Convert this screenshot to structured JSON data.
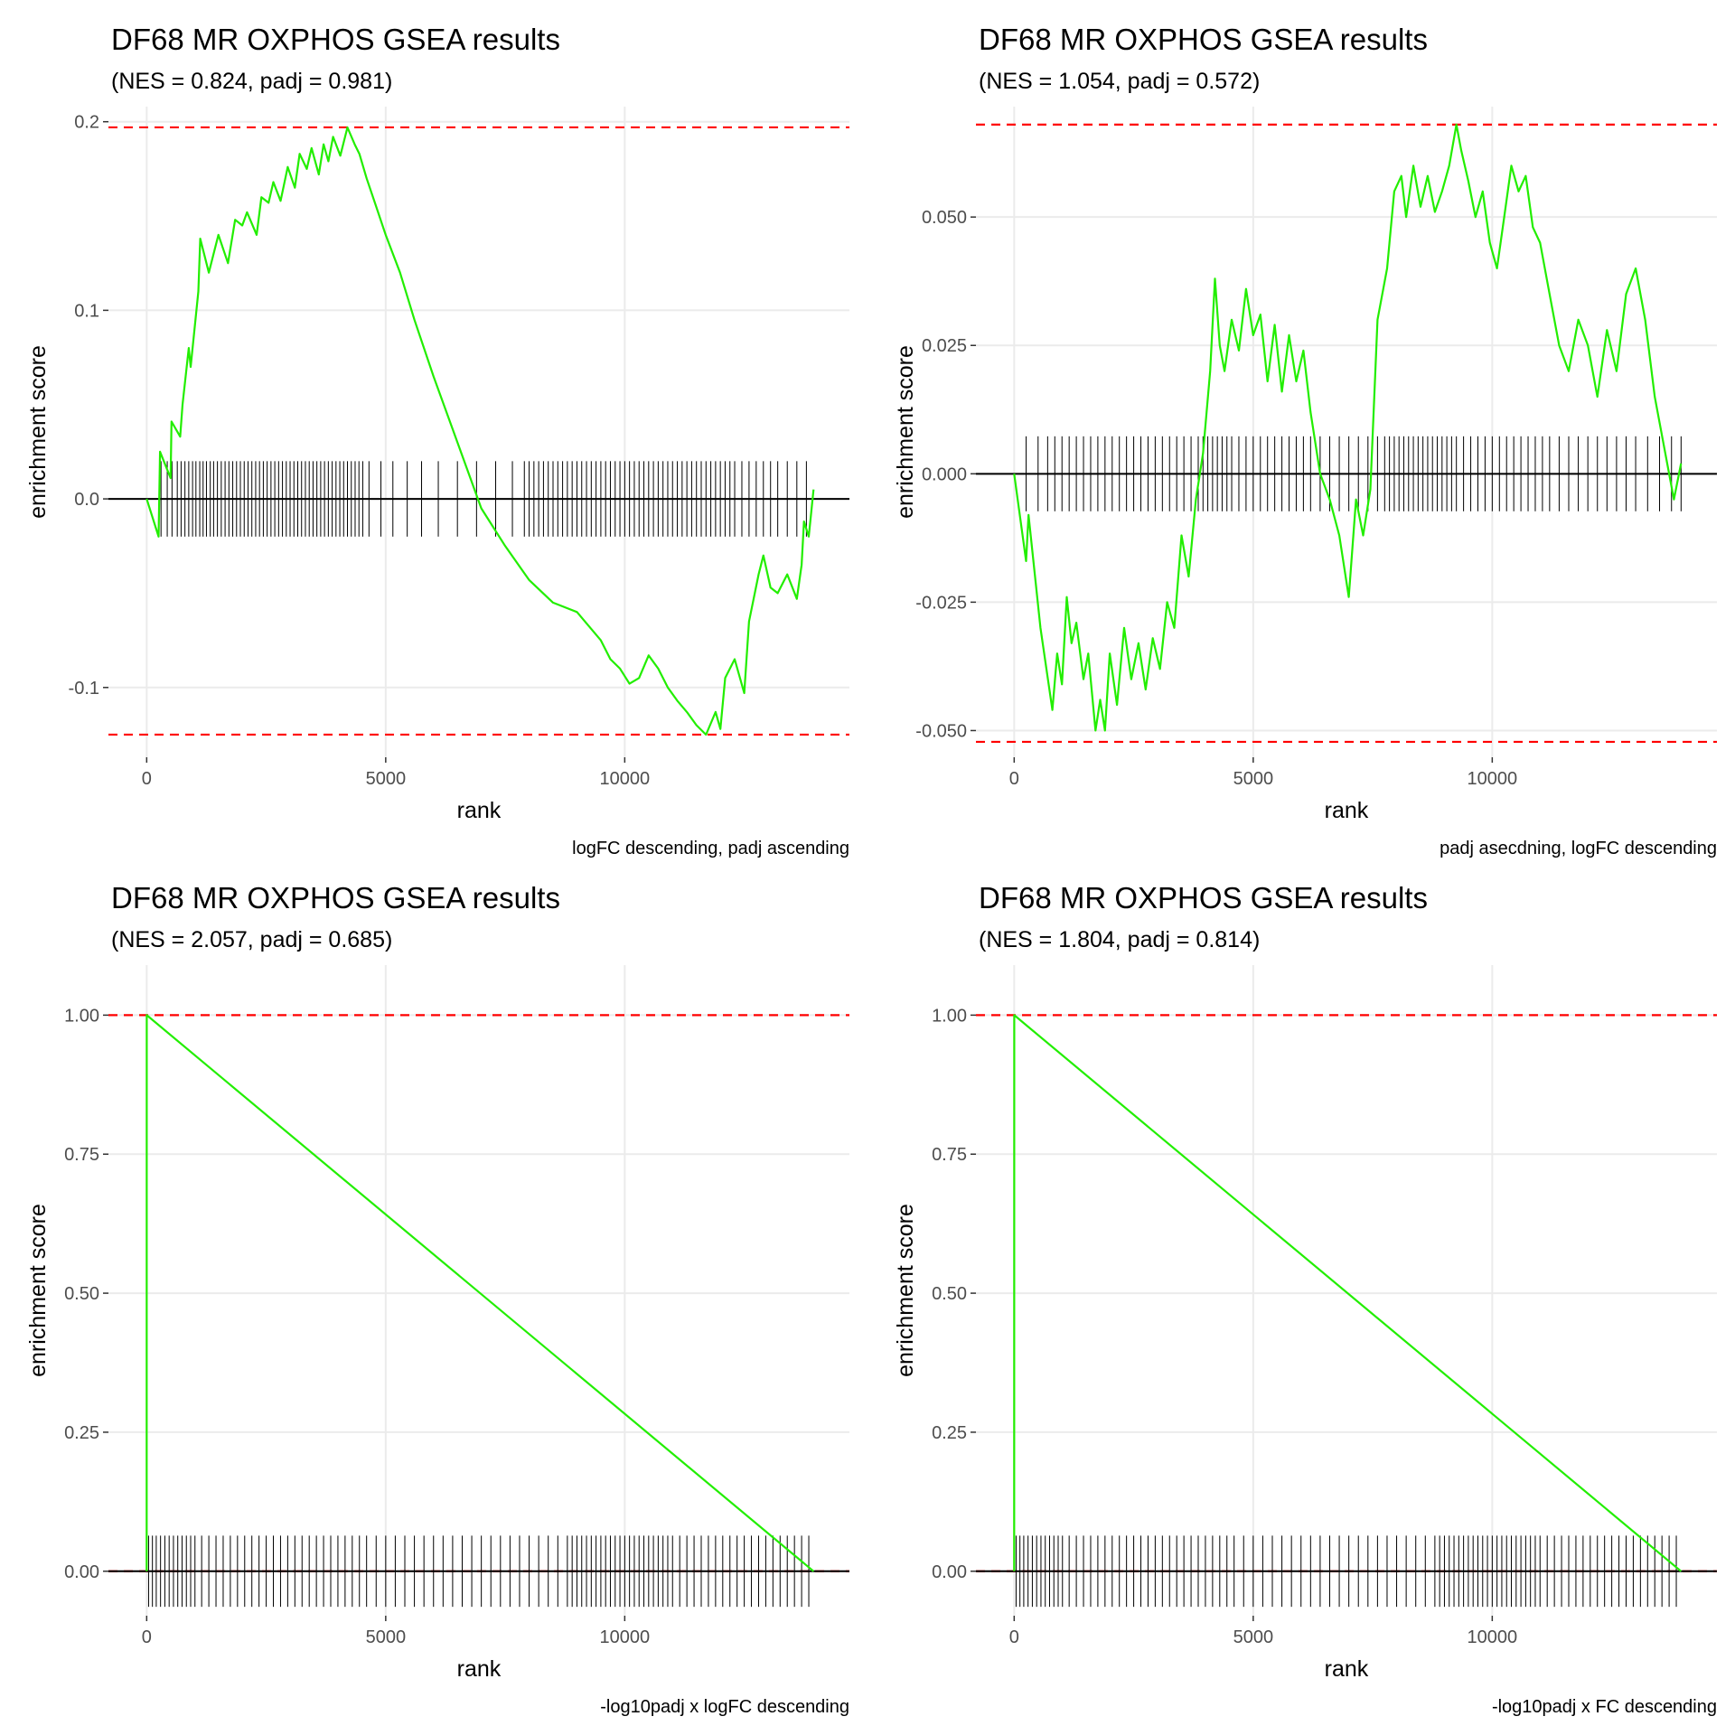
{
  "chart_data": [
    {
      "type": "line",
      "title": "DF68 MR OXPHOS GSEA results",
      "subtitle": "(NES = 0.824, padj = 0.981)",
      "xlabel": "rank",
      "ylabel": "enrichment score",
      "caption": "logFC descending, padj ascending",
      "xlim": [
        -800,
        14700
      ],
      "ylim": [
        -0.137,
        0.208
      ],
      "xticks": [
        0,
        5000,
        10000
      ],
      "xtick_labels": [
        "0",
        "5000",
        "10000"
      ],
      "yticks": [
        -0.1,
        0.0,
        0.1,
        0.2
      ],
      "ytick_labels": [
        "-0.1",
        "0.0",
        "0.1",
        "0.2"
      ],
      "dashed_lines": [
        0.197,
        -0.125
      ],
      "gene_tick_halfheight": 0.02,
      "grid": true,
      "series": [
        {
          "color": "#22ee00",
          "x": [
            0,
            250,
            280,
            500,
            520,
            700,
            750,
            880,
            920,
            1080,
            1120,
            1300,
            1500,
            1700,
            1850,
            2000,
            2100,
            2300,
            2400,
            2550,
            2650,
            2800,
            2950,
            3100,
            3200,
            3350,
            3450,
            3600,
            3700,
            3800,
            3900,
            4050,
            4200,
            4350,
            4450,
            4600,
            4800,
            5000,
            5300,
            5600,
            6000,
            6500,
            7000,
            7500,
            8000,
            8500,
            9000,
            9500,
            9700,
            9900,
            10100,
            10300,
            10500,
            10700,
            10900,
            11100,
            11300,
            11500,
            11700,
            11900,
            12000,
            12100,
            12300,
            12500,
            12600,
            12800,
            12900,
            13050,
            13200,
            13400,
            13600,
            13700,
            13750,
            13850,
            13950
          ],
          "y": [
            0.0,
            -0.02,
            0.025,
            0.011,
            0.041,
            0.033,
            0.05,
            0.08,
            0.07,
            0.11,
            0.138,
            0.12,
            0.14,
            0.125,
            0.148,
            0.145,
            0.152,
            0.14,
            0.16,
            0.157,
            0.168,
            0.158,
            0.176,
            0.165,
            0.183,
            0.175,
            0.186,
            0.172,
            0.188,
            0.179,
            0.192,
            0.182,
            0.197,
            0.188,
            0.183,
            0.17,
            0.155,
            0.14,
            0.12,
            0.095,
            0.065,
            0.03,
            -0.005,
            -0.025,
            -0.043,
            -0.055,
            -0.06,
            -0.075,
            -0.085,
            -0.09,
            -0.098,
            -0.095,
            -0.083,
            -0.09,
            -0.1,
            -0.107,
            -0.113,
            -0.12,
            -0.125,
            -0.113,
            -0.122,
            -0.095,
            -0.085,
            -0.103,
            -0.065,
            -0.04,
            -0.03,
            -0.047,
            -0.05,
            -0.04,
            -0.053,
            -0.035,
            -0.012,
            -0.02,
            0.005
          ]
        }
      ],
      "gene_ranks": [
        300,
        430,
        530,
        640,
        720,
        800,
        880,
        960,
        1030,
        1110,
        1180,
        1250,
        1330,
        1400,
        1480,
        1560,
        1640,
        1720,
        1800,
        1880,
        1960,
        2040,
        2120,
        2200,
        2280,
        2360,
        2440,
        2520,
        2600,
        2680,
        2760,
        2840,
        2920,
        3000,
        3080,
        3160,
        3240,
        3320,
        3400,
        3480,
        3560,
        3640,
        3720,
        3800,
        3880,
        3960,
        4040,
        4120,
        4200,
        4280,
        4360,
        4440,
        4520,
        4650,
        4900,
        5150,
        5450,
        5750,
        6100,
        6500,
        6900,
        7300,
        7650,
        7900,
        8000,
        8100,
        8200,
        8300,
        8400,
        8500,
        8600,
        8700,
        8800,
        8900,
        9000,
        9100,
        9200,
        9300,
        9400,
        9500,
        9600,
        9700,
        9800,
        9900,
        10000,
        10100,
        10200,
        10300,
        10400,
        10500,
        10600,
        10700,
        10800,
        10900,
        11000,
        11100,
        11200,
        11300,
        11400,
        11500,
        11600,
        11700,
        11800,
        11900,
        12000,
        12100,
        12200,
        12300,
        12450,
        12600,
        12750,
        12900,
        13050,
        13200,
        13400,
        13600,
        13800
      ]
    },
    {
      "type": "line",
      "title": "DF68 MR OXPHOS GSEA results",
      "subtitle": "(NES = 1.054, padj = 0.572)",
      "xlabel": "rank",
      "ylabel": "enrichment score",
      "caption": "padj asecdning, logFC descending",
      "xlim": [
        -800,
        14700
      ],
      "ylim": [
        -0.0552,
        0.0715
      ],
      "xticks": [
        0,
        5000,
        10000
      ],
      "xtick_labels": [
        "0",
        "5000",
        "10000"
      ],
      "yticks": [
        -0.05,
        -0.025,
        0.0,
        0.025,
        0.05
      ],
      "ytick_labels": [
        "-0.050",
        "-0.025",
        "0.000",
        "0.025",
        "0.050"
      ],
      "dashed_lines": [
        0.068,
        -0.0522
      ],
      "gene_tick_halfheight": 0.0073,
      "grid": true,
      "series": [
        {
          "color": "#22ee00",
          "x": [
            0,
            250,
            300,
            550,
            800,
            900,
            1000,
            1100,
            1200,
            1300,
            1450,
            1550,
            1700,
            1800,
            1900,
            2000,
            2150,
            2300,
            2450,
            2600,
            2750,
            2900,
            3050,
            3200,
            3350,
            3500,
            3650,
            3800,
            3950,
            4100,
            4200,
            4300,
            4400,
            4550,
            4700,
            4850,
            5000,
            5150,
            5300,
            5450,
            5600,
            5750,
            5900,
            6050,
            6200,
            6400,
            6600,
            6800,
            7000,
            7150,
            7300,
            7450,
            7600,
            7800,
            7950,
            8100,
            8200,
            8350,
            8500,
            8650,
            8800,
            8950,
            9100,
            9250,
            9350,
            9500,
            9650,
            9800,
            9950,
            10100,
            10250,
            10400,
            10550,
            10700,
            10850,
            11000,
            11200,
            11400,
            11600,
            11800,
            12000,
            12200,
            12400,
            12600,
            12800,
            13000,
            13200,
            13400,
            13600,
            13800,
            13950
          ],
          "y": [
            0.0,
            -0.017,
            -0.008,
            -0.03,
            -0.046,
            -0.035,
            -0.041,
            -0.024,
            -0.033,
            -0.029,
            -0.04,
            -0.035,
            -0.05,
            -0.044,
            -0.05,
            -0.035,
            -0.045,
            -0.03,
            -0.04,
            -0.033,
            -0.042,
            -0.032,
            -0.038,
            -0.025,
            -0.03,
            -0.012,
            -0.02,
            -0.005,
            0.004,
            0.02,
            0.038,
            0.025,
            0.02,
            0.03,
            0.024,
            0.036,
            0.027,
            0.031,
            0.018,
            0.029,
            0.016,
            0.027,
            0.018,
            0.024,
            0.012,
            0.0,
            -0.005,
            -0.012,
            -0.024,
            -0.005,
            -0.012,
            -0.003,
            0.03,
            0.04,
            0.055,
            0.058,
            0.05,
            0.06,
            0.052,
            0.058,
            0.051,
            0.055,
            0.06,
            0.068,
            0.063,
            0.057,
            0.05,
            0.055,
            0.045,
            0.04,
            0.05,
            0.06,
            0.055,
            0.058,
            0.048,
            0.045,
            0.035,
            0.025,
            0.02,
            0.03,
            0.025,
            0.015,
            0.028,
            0.02,
            0.035,
            0.04,
            0.03,
            0.015,
            0.005,
            -0.005,
            0.002
          ]
        }
      ],
      "gene_ranks": [
        250,
        500,
        700,
        850,
        1000,
        1150,
        1300,
        1450,
        1600,
        1750,
        1900,
        2050,
        2200,
        2350,
        2500,
        2650,
        2800,
        2950,
        3100,
        3250,
        3400,
        3550,
        3700,
        3850,
        3950,
        4050,
        4150,
        4250,
        4350,
        4450,
        4550,
        4700,
        4850,
        5000,
        5150,
        5300,
        5450,
        5600,
        5750,
        5900,
        6050,
        6200,
        6400,
        6600,
        6800,
        7000,
        7200,
        7400,
        7600,
        7750,
        7850,
        7950,
        8050,
        8150,
        8250,
        8350,
        8450,
        8550,
        8650,
        8750,
        8850,
        8950,
        9050,
        9150,
        9250,
        9400,
        9550,
        9700,
        9850,
        10000,
        10150,
        10300,
        10450,
        10600,
        10750,
        10900,
        11050,
        11200,
        11400,
        11600,
        11800,
        12000,
        12200,
        12400,
        12600,
        12800,
        13000,
        13250,
        13500,
        13750,
        13950
      ]
    },
    {
      "type": "line",
      "title": "DF68 MR OXPHOS GSEA results",
      "subtitle": "(NES = 2.057, padj = 0.685)",
      "xlabel": "rank",
      "ylabel": "enrichment score",
      "caption": "-log10padj x logFC descending",
      "xlim": [
        -800,
        14700
      ],
      "ylim": [
        -0.08,
        1.09
      ],
      "xticks": [
        0,
        5000,
        10000
      ],
      "xtick_labels": [
        "0",
        "5000",
        "10000"
      ],
      "yticks": [
        0.0,
        0.25,
        0.5,
        0.75,
        1.0
      ],
      "ytick_labels": [
        "0.00",
        "0.25",
        "0.50",
        "0.75",
        "1.00"
      ],
      "dashed_lines": [
        1.0,
        0.0
      ],
      "gene_tick_halfheight": 0.064,
      "grid": true,
      "series": [
        {
          "color": "#22ee00",
          "x": [
            0,
            1,
            13950
          ],
          "y": [
            0.0,
            1.0,
            0.0
          ]
        }
      ],
      "gene_ranks": [
        40,
        120,
        200,
        290,
        380,
        470,
        560,
        650,
        740,
        830,
        920,
        1010,
        1150,
        1300,
        1450,
        1600,
        1750,
        1900,
        2050,
        2200,
        2350,
        2500,
        2650,
        2800,
        2950,
        3100,
        3250,
        3400,
        3550,
        3700,
        3850,
        4000,
        4150,
        4300,
        4450,
        4600,
        4800,
        5000,
        5200,
        5400,
        5600,
        5800,
        6000,
        6200,
        6400,
        6600,
        6800,
        7000,
        7200,
        7400,
        7600,
        7800,
        8000,
        8200,
        8400,
        8600,
        8800,
        8900,
        9000,
        9100,
        9200,
        9300,
        9400,
        9500,
        9600,
        9700,
        9800,
        9900,
        10000,
        10100,
        10200,
        10300,
        10400,
        10500,
        10600,
        10700,
        10800,
        10900,
        11000,
        11150,
        11300,
        11450,
        11600,
        11750,
        11900,
        12050,
        12200,
        12350,
        12500,
        12650,
        12800,
        12950,
        13100,
        13250,
        13400,
        13550,
        13700,
        13850
      ]
    },
    {
      "type": "line",
      "title": "DF68 MR OXPHOS GSEA results",
      "subtitle": "(NES = 1.804, padj = 0.814)",
      "xlabel": "rank",
      "ylabel": "enrichment score",
      "caption": "-log10padj x FC descending",
      "xlim": [
        -800,
        14700
      ],
      "ylim": [
        -0.08,
        1.09
      ],
      "xticks": [
        0,
        5000,
        10000
      ],
      "xtick_labels": [
        "0",
        "5000",
        "10000"
      ],
      "yticks": [
        0.0,
        0.25,
        0.5,
        0.75,
        1.0
      ],
      "ytick_labels": [
        "0.00",
        "0.25",
        "0.50",
        "0.75",
        "1.00"
      ],
      "dashed_lines": [
        1.0,
        0.0
      ],
      "gene_tick_halfheight": 0.064,
      "grid": true,
      "series": [
        {
          "color": "#22ee00",
          "x": [
            0,
            1,
            13950
          ],
          "y": [
            0.0,
            1.0,
            0.0
          ]
        }
      ],
      "gene_ranks": [
        40,
        120,
        200,
        290,
        380,
        470,
        560,
        650,
        740,
        830,
        920,
        1010,
        1150,
        1300,
        1450,
        1600,
        1750,
        1900,
        2050,
        2200,
        2350,
        2500,
        2650,
        2800,
        2950,
        3100,
        3250,
        3400,
        3550,
        3700,
        3850,
        4000,
        4150,
        4300,
        4450,
        4600,
        4800,
        5000,
        5200,
        5400,
        5600,
        5800,
        6000,
        6200,
        6400,
        6600,
        6800,
        7000,
        7200,
        7400,
        7600,
        7800,
        8000,
        8200,
        8400,
        8600,
        8800,
        8900,
        9000,
        9100,
        9200,
        9300,
        9400,
        9500,
        9600,
        9700,
        9800,
        9900,
        10000,
        10100,
        10200,
        10300,
        10400,
        10500,
        10600,
        10700,
        10800,
        10900,
        11000,
        11150,
        11300,
        11450,
        11600,
        11750,
        11900,
        12050,
        12200,
        12350,
        12500,
        12650,
        12800,
        12950,
        13100,
        13250,
        13400,
        13550,
        13700,
        13850
      ]
    }
  ]
}
